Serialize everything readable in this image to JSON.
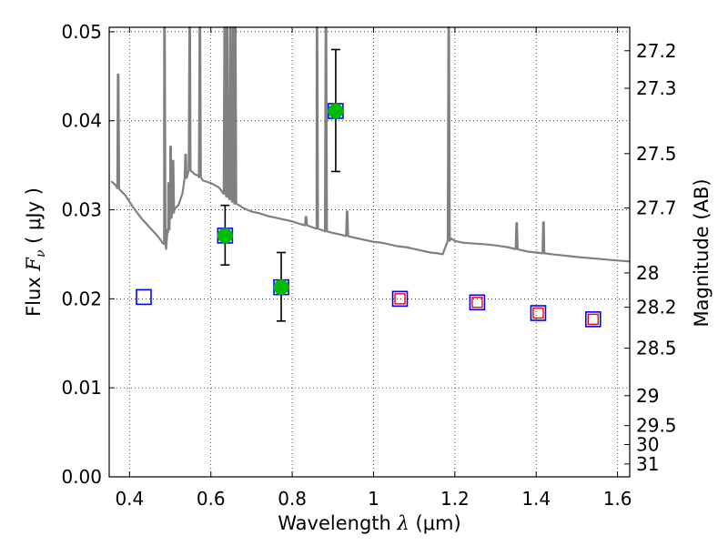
{
  "chart_data": {
    "type": "scatter",
    "title": "",
    "xlabel": {
      "pre": "Wavelength  ",
      "sym": "λ",
      "post": " (μm)"
    },
    "ylabel": {
      "pre": "Flux  ",
      "sym": "F",
      "sub": "ν",
      "post": "  ( μJy )"
    },
    "y2label": "Magnitude (AB)",
    "xlim": [
      0.35,
      1.63
    ],
    "ylim": [
      0.0,
      0.0505
    ],
    "grid": true,
    "xticks": [
      {
        "v": 0.4,
        "label": "0.4"
      },
      {
        "v": 0.6,
        "label": "0.6"
      },
      {
        "v": 0.8,
        "label": "0.8"
      },
      {
        "v": 1.0,
        "label": "1"
      },
      {
        "v": 1.2,
        "label": "1.2"
      },
      {
        "v": 1.4,
        "label": "1.4"
      },
      {
        "v": 1.6,
        "label": "1.6"
      }
    ],
    "yticks": [
      {
        "v": 0.0,
        "label": "0.00"
      },
      {
        "v": 0.01,
        "label": "0.01"
      },
      {
        "v": 0.02,
        "label": "0.02"
      },
      {
        "v": 0.03,
        "label": "0.03"
      },
      {
        "v": 0.04,
        "label": "0.04"
      },
      {
        "v": 0.05,
        "label": "0.05"
      }
    ],
    "y2ticks": [
      {
        "mag": 27.2,
        "label": "27.2"
      },
      {
        "mag": 27.3,
        "label": "27.3"
      },
      {
        "mag": 27.5,
        "label": "27.5"
      },
      {
        "mag": 27.7,
        "label": "27.7"
      },
      {
        "mag": 28.0,
        "label": "28"
      },
      {
        "mag": 28.2,
        "label": "28.2"
      },
      {
        "mag": 28.5,
        "label": "28.5"
      },
      {
        "mag": 29.0,
        "label": "29"
      },
      {
        "mag": 29.5,
        "label": "29.5"
      },
      {
        "mag": 30.0,
        "label": "30"
      },
      {
        "mag": 31.0,
        "label": "31"
      }
    ],
    "colors": {
      "template": "#808080",
      "detection": "#00bb00",
      "model_box": "#0000ff",
      "limit_box": "#ff0000",
      "errorbar": "#000000"
    },
    "template_spectrum": {
      "x": [
        0.355,
        0.365,
        0.368,
        0.37,
        0.375,
        0.39,
        0.41,
        0.43,
        0.45,
        0.47,
        0.485,
        0.49,
        0.495,
        0.5,
        0.505,
        0.51,
        0.515,
        0.52,
        0.53,
        0.54,
        0.55,
        0.56,
        0.57,
        0.58,
        0.6,
        0.62,
        0.64,
        0.66,
        0.68,
        0.7,
        0.72,
        0.74,
        0.76,
        0.78,
        0.8,
        0.82,
        0.84,
        0.86,
        0.88,
        0.9,
        0.92,
        0.94,
        0.96,
        0.98,
        1.0,
        1.02,
        1.04,
        1.06,
        1.08,
        1.1,
        1.12,
        1.14,
        1.16,
        1.17,
        1.18,
        1.19,
        1.2,
        1.22,
        1.25,
        1.28,
        1.3,
        1.33,
        1.36,
        1.38,
        1.4,
        1.42,
        1.44,
        1.46,
        1.48,
        1.5,
        1.55,
        1.6,
        1.63
      ],
      "y": [
        0.0332,
        0.0328,
        0.0326,
        0.0325,
        0.0323,
        0.0316,
        0.0302,
        0.029,
        0.028,
        0.027,
        0.0263,
        0.0256,
        0.0275,
        0.029,
        0.0295,
        0.03,
        0.0303,
        0.0305,
        0.0318,
        0.034,
        0.0345,
        0.034,
        0.0338,
        0.0333,
        0.033,
        0.0325,
        0.0315,
        0.0307,
        0.0302,
        0.0298,
        0.0296,
        0.0293,
        0.0291,
        0.0289,
        0.0287,
        0.0284,
        0.0282,
        0.0279,
        0.0276,
        0.0274,
        0.0272,
        0.027,
        0.0268,
        0.0266,
        0.0264,
        0.0263,
        0.0261,
        0.0259,
        0.0258,
        0.0256,
        0.0254,
        0.0252,
        0.0251,
        0.025,
        0.0262,
        0.0268,
        0.0265,
        0.0263,
        0.0262,
        0.0261,
        0.026,
        0.0258,
        0.0255,
        0.0253,
        0.0252,
        0.0251,
        0.025,
        0.0249,
        0.0248,
        0.0247,
        0.0245,
        0.0243,
        0.0242
      ]
    },
    "emission_lines": [
      {
        "x": 0.372,
        "peak": 0.0452
      },
      {
        "x": 0.486,
        "peak": 0.0505
      },
      {
        "x": 0.496,
        "peak": 0.033
      },
      {
        "x": 0.501,
        "peak": 0.0371
      },
      {
        "x": 0.507,
        "peak": 0.0355
      },
      {
        "x": 0.538,
        "peak": 0.0362
      },
      {
        "x": 0.548,
        "peak": 0.0505
      },
      {
        "x": 0.573,
        "peak": 0.0505
      },
      {
        "x": 0.634,
        "peak": 0.0505
      },
      {
        "x": 0.64,
        "peak": 0.0505
      },
      {
        "x": 0.648,
        "peak": 0.0505
      },
      {
        "x": 0.655,
        "peak": 0.0505
      },
      {
        "x": 0.66,
        "peak": 0.0505
      },
      {
        "x": 0.834,
        "peak": 0.0292
      },
      {
        "x": 0.861,
        "peak": 0.0505
      },
      {
        "x": 0.883,
        "peak": 0.0505
      },
      {
        "x": 0.935,
        "peak": 0.0298
      },
      {
        "x": 1.185,
        "peak": 0.0505
      },
      {
        "x": 1.352,
        "peak": 0.0285
      },
      {
        "x": 1.418,
        "peak": 0.0286
      }
    ],
    "series": [
      {
        "marker": "filled-circle-in-blue-square",
        "points": [
          {
            "x": 0.635,
            "y": 0.0271,
            "err": [
              0.0238,
              0.0305
            ]
          },
          {
            "x": 0.773,
            "y": 0.0213,
            "err": [
              0.0175,
              0.0252
            ]
          },
          {
            "x": 0.907,
            "y": 0.0411,
            "err": [
              0.0343,
              0.048
            ]
          }
        ]
      },
      {
        "marker": "open-blue-square",
        "points": [
          {
            "x": 0.435,
            "y": 0.0202
          }
        ]
      },
      {
        "marker": "red-square-in-blue-square",
        "points": [
          {
            "x": 1.065,
            "y": 0.02
          },
          {
            "x": 1.255,
            "y": 0.0196
          },
          {
            "x": 1.405,
            "y": 0.0184
          },
          {
            "x": 1.54,
            "y": 0.0177
          }
        ]
      }
    ]
  }
}
